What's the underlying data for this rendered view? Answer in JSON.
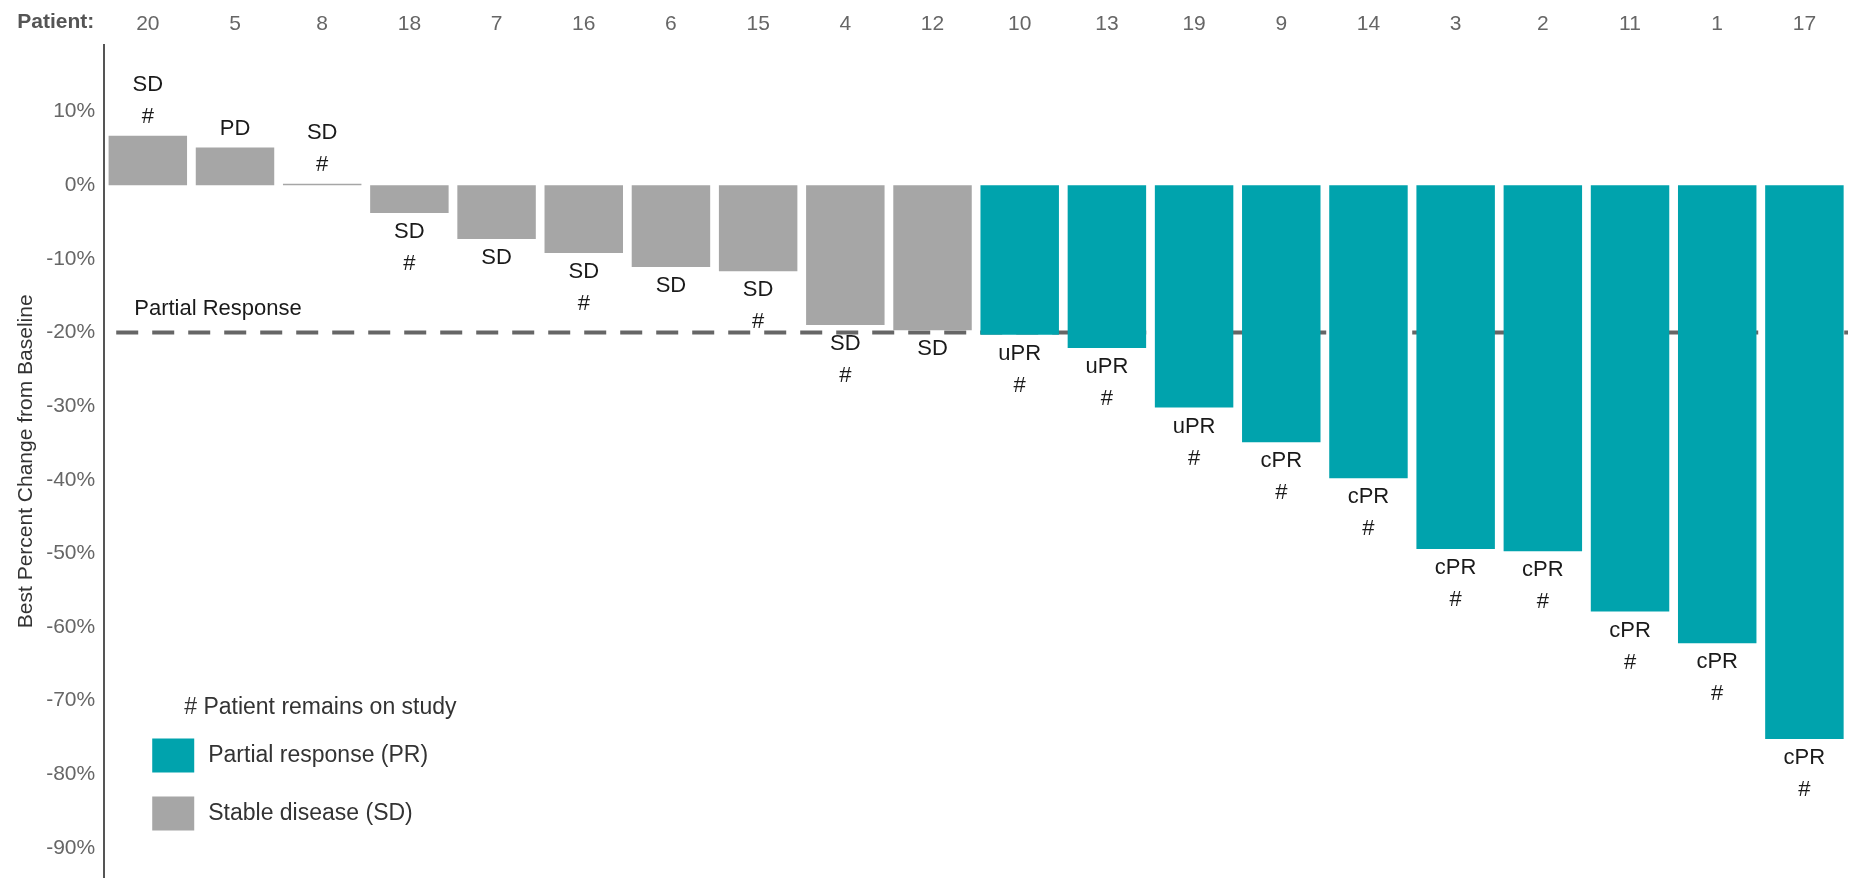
{
  "chart_data": {
    "type": "bar",
    "xlabel": "Patient:",
    "ylabel": "Best Percent Change from Baseline",
    "legend_title": "# Patient remains on study",
    "legend": "bottom left",
    "stacked": true,
    "categories": [
      "20",
      "5",
      "8",
      "18",
      "7",
      "16",
      "6",
      "15",
      "4",
      "12",
      "10",
      "13",
      "19",
      "9",
      "14",
      "3",
      "2",
      "11",
      "1",
      "17"
    ],
    "series": [
      {
        "name": "Partial response (PR)",
        "color": "#00a3ad",
        "values": [
          null,
          null,
          null,
          null,
          null,
          null,
          null,
          null,
          null,
          null,
          -20.3,
          -22.1,
          -30.2,
          -34.9,
          -39.8,
          -49.4,
          -49.7,
          -57.9,
          -62.2,
          -75.2
        ],
        "value_labels": [
          null,
          null,
          null,
          null,
          null,
          null,
          null,
          null,
          null,
          null,
          "uPR\n#",
          "uPR\n#",
          "uPR\n#",
          "cPR\n#",
          "cPR\n#",
          "cPR\n#",
          "cPR\n#",
          "cPR\n#",
          "cPR\n#",
          "cPR\n#"
        ]
      },
      {
        "name": "Stable disease (SD)",
        "color": "#a6a6a6",
        "values": [
          6.7,
          5.1,
          0.2,
          -3.8,
          -7.3,
          -9.2,
          -11.1,
          -11.7,
          -19.0,
          -19.7,
          null,
          null,
          null,
          null,
          null,
          null,
          null,
          null,
          null,
          null
        ],
        "value_labels": [
          "SD\n#",
          "PD",
          "SD\n#",
          "SD\n#",
          "SD",
          "SD\n#",
          "SD",
          "SD\n#",
          "SD\n#",
          "SD",
          null,
          null,
          null,
          null,
          null,
          null,
          null,
          null,
          null,
          null
        ]
      }
    ],
    "ylim": [
      -94,
      19
    ],
    "yticks": [
      {
        "value": -90,
        "label": "-90%"
      },
      {
        "value": -80,
        "label": "-80%"
      },
      {
        "value": -70,
        "label": "-70%"
      },
      {
        "value": -60,
        "label": "-60%"
      },
      {
        "value": -50,
        "label": "-50%"
      },
      {
        "value": -40,
        "label": "-40%"
      },
      {
        "value": -30,
        "label": "-30%"
      },
      {
        "value": -20,
        "label": "-20%"
      },
      {
        "value": -10,
        "label": "-10%"
      },
      {
        "value": 0,
        "label": "0%"
      },
      {
        "value": 10,
        "label": "10%"
      }
    ],
    "grid": false,
    "ref_lines": [
      {
        "axis": "y",
        "value": -20,
        "label": "Partial Response",
        "color": "#666666",
        "line_style": "dashed"
      }
    ]
  }
}
